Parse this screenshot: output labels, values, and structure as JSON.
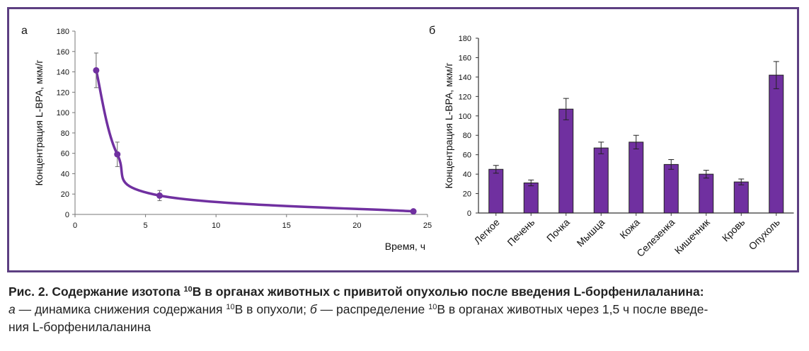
{
  "chart_data": [
    {
      "panel_letter": "а",
      "type": "line",
      "xlabel": "Время, ч",
      "ylabel": "Концентрация L-BPA, мкм/г",
      "xlim": [
        0,
        25
      ],
      "ylim": [
        0,
        180
      ],
      "xticks": [
        0,
        5,
        10,
        15,
        20,
        25
      ],
      "yticks": [
        0,
        20,
        40,
        60,
        80,
        100,
        120,
        140,
        160,
        180
      ],
      "grid": false,
      "color": "#7030a0",
      "series": [
        {
          "x": [
            1.5,
            3,
            6,
            24
          ],
          "y": [
            141.5,
            59,
            18.5,
            3
          ],
          "error": [
            17,
            12,
            5,
            0
          ]
        }
      ]
    },
    {
      "panel_letter": "б",
      "type": "bar",
      "ylabel": "Концентрация L-BPA, мкм/г",
      "ylim": [
        0,
        180
      ],
      "yticks": [
        0,
        20,
        40,
        60,
        80,
        100,
        120,
        140,
        160,
        180
      ],
      "grid": false,
      "color": "#7030a0",
      "categories": [
        "Легкое",
        "Печень",
        "Почка",
        "Мышца",
        "Кожа",
        "Селезенка",
        "Кишечник",
        "Кровь",
        "Опухоль"
      ],
      "values": [
        45,
        31,
        107,
        67,
        73,
        50,
        40,
        32,
        142
      ],
      "errors": [
        4,
        3,
        11,
        6,
        7,
        5,
        4,
        3,
        14
      ]
    }
  ],
  "caption": {
    "title_prefix": "Рис. 2. Содержание изотопа ",
    "title_sup": "10",
    "title_suffix": "B в органах животных с привитой опухолью после введения L-борфенилаланина:",
    "a_letter": "а",
    "a_text_1": " — динамика снижения содержания ",
    "a_sup": "10",
    "a_text_2": "B в опухоли; ",
    "b_letter": "б",
    "b_text_1": " — распределение ",
    "b_sup": "10",
    "b_text_2": "B в органах животных через 1,5 ч после введе-",
    "line3": "ния L-борфенилаланина"
  }
}
